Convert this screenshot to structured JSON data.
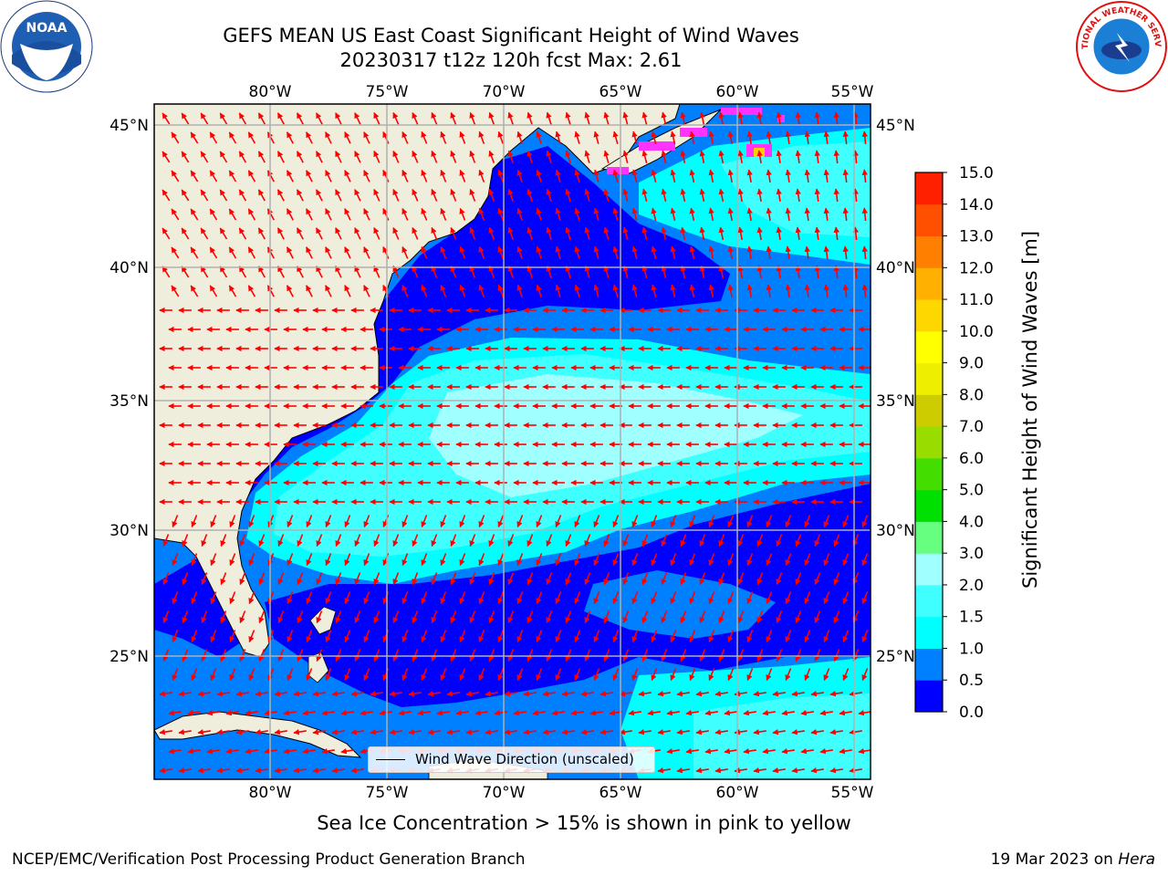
{
  "header": {
    "title_line1": "GEFS MEAN US East Coast Significant Height of Wind Waves",
    "title_line2": "20230317 t12z 120h fcst   Max: 2.61"
  },
  "map": {
    "lon_ticks": [
      "80°W",
      "75°W",
      "70°W",
      "65°W",
      "60°W",
      "55°W"
    ],
    "lat_ticks": [
      "45°N",
      "40°N",
      "35°N",
      "30°N",
      "25°N"
    ],
    "legend": "Wind Wave Direction (unscaled)",
    "land_color": "#efeddc",
    "arrow_color": "#ff0000"
  },
  "colorbar": {
    "title": "Significant Height of Wind Waves [m]",
    "ticks": [
      "0.0",
      "0.5",
      "1.0",
      "1.5",
      "2.0",
      "3.0",
      "4.0",
      "5.0",
      "6.0",
      "7.0",
      "8.0",
      "9.0",
      "10.0",
      "11.0",
      "12.0",
      "13.0",
      "14.0",
      "15.0"
    ],
    "colors": [
      "#0000ff",
      "#0080ff",
      "#00ffff",
      "#40ffff",
      "#a0ffff",
      "#66ff80",
      "#00e000",
      "#44dd00",
      "#99dd00",
      "#cccc00",
      "#eeee00",
      "#ffff00",
      "#ffd700",
      "#ffb000",
      "#ff8000",
      "#ff5000",
      "#ff2000"
    ]
  },
  "notes": {
    "ice": "Sea Ice Concentration > 15% is shown in pink to yellow",
    "footer_left": "NCEP/EMC/Verification Post Processing Product Generation Branch",
    "footer_date": "19 Mar 2023 on",
    "footer_host": "Hera"
  },
  "logos": {
    "noaa": "NOAA",
    "nws": "NATIONAL WEATHER SERVICE"
  }
}
